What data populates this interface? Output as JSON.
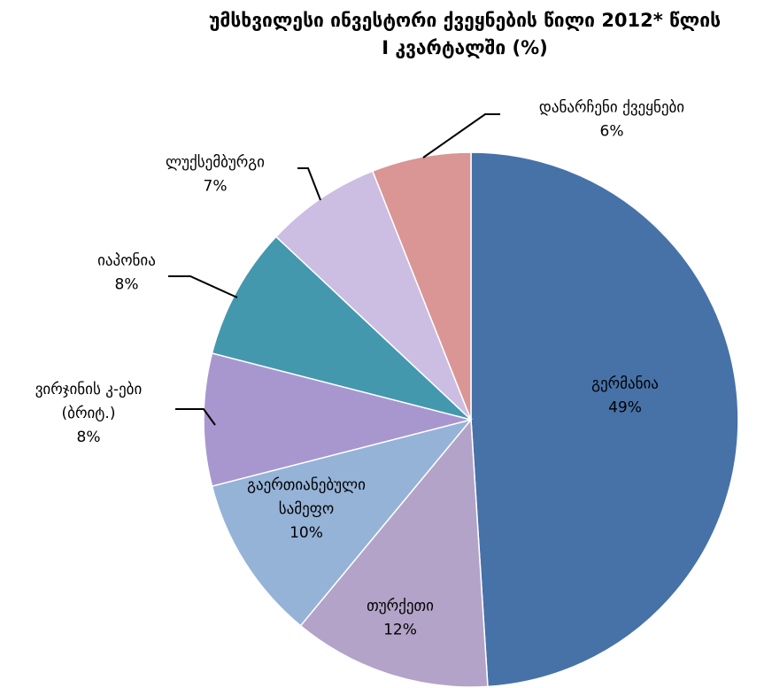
{
  "chart_data": {
    "type": "pie",
    "title_lines": [
      "უმსხვილესი ინვესტორი ქვეყნების წილი 2012* წლის",
      "I კვარტალში (%)"
    ],
    "slices": [
      {
        "label_lines": [
          "გერმანია"
        ],
        "value": 49,
        "value_label": "49%",
        "color": "#4672A8"
      },
      {
        "label_lines": [
          "თურქეთი"
        ],
        "value": 12,
        "value_label": "12%",
        "color": "#B3A3C8"
      },
      {
        "label_lines": [
          "გაერთიანებული",
          "სამეფო"
        ],
        "value": 10,
        "value_label": "10%",
        "color": "#95B3D7"
      },
      {
        "label_lines": [
          "ვირჯინის კ-ები",
          "(ბრიტ.)"
        ],
        "value": 8,
        "value_label": "8%",
        "color": "#A897CF"
      },
      {
        "label_lines": [
          "იაპონია"
        ],
        "value": 8,
        "value_label": "8%",
        "color": "#4398AE"
      },
      {
        "label_lines": [
          "ლუქსემბურგი"
        ],
        "value": 7,
        "value_label": "7%",
        "color": "#CCBDE2"
      },
      {
        "label_lines": [
          "დანარჩენი ქვეყნები"
        ],
        "value": 6,
        "value_label": "6%",
        "color": "#D99694"
      }
    ]
  }
}
